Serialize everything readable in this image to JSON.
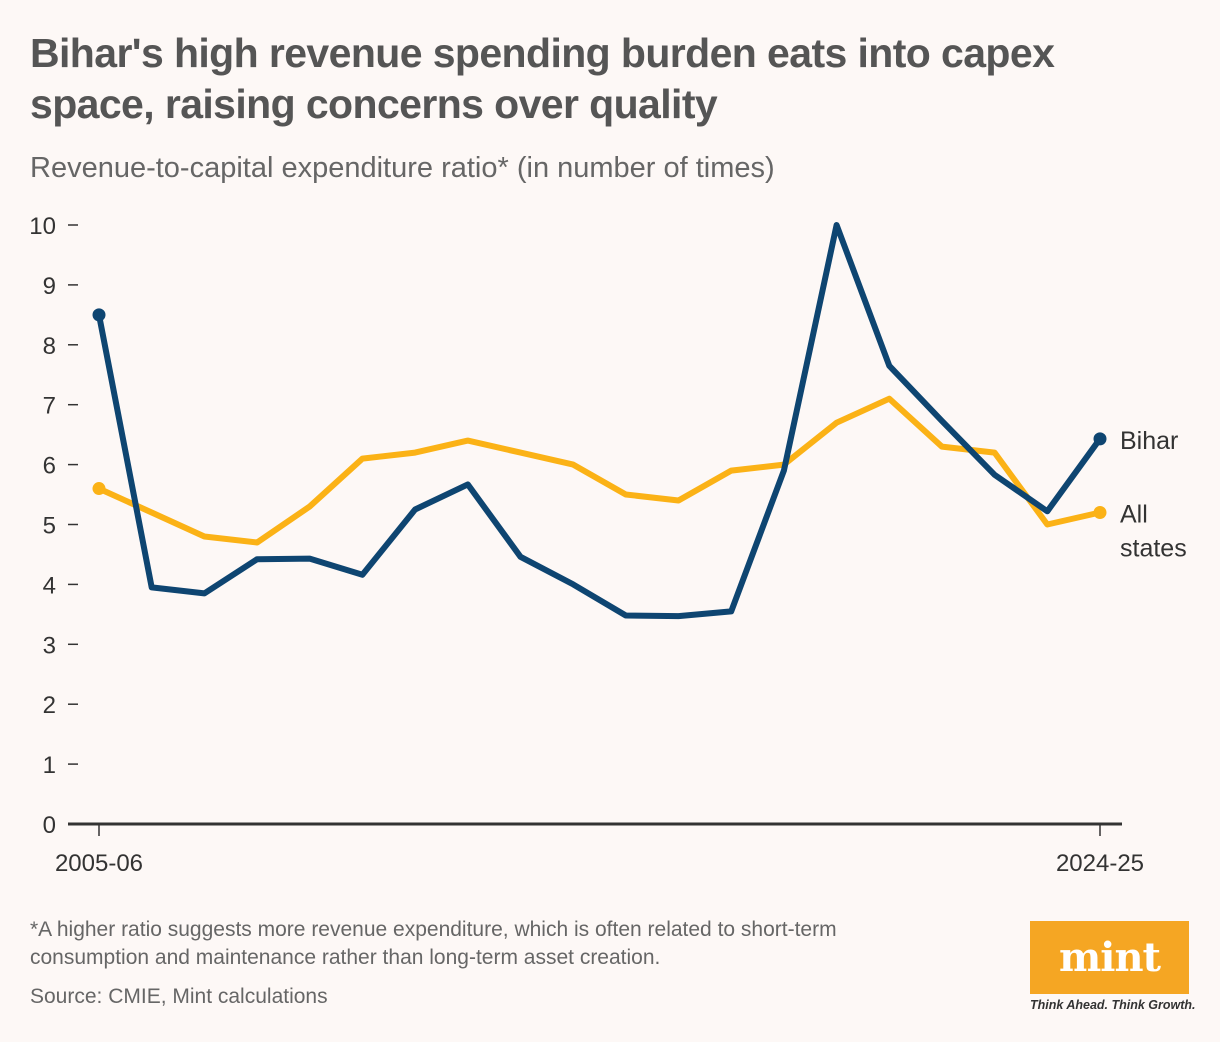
{
  "header": {
    "title": "Bihar's high revenue spending burden eats into capex space, raising concerns over quality",
    "subtitle": "Revenue-to-capital expenditure ratio* (in number of times)"
  },
  "footer": {
    "footnote": "*A higher ratio suggests more revenue expenditure, which is often related to short-term consumption and maintenance rather than long-term asset creation.",
    "source": "Source: CMIE, Mint calculations"
  },
  "brand": {
    "logo_text": "mint",
    "tagline": "Think Ahead. Think Growth.",
    "logo_color": "#f5a623"
  },
  "chart_data": {
    "type": "line",
    "title": "Bihar's high revenue spending burden eats into capex space, raising concerns over quality",
    "subtitle": "Revenue-to-capital expenditure ratio* (in number of times)",
    "xlabel": "",
    "ylabel": "",
    "x_tick_labels": [
      "2005-06",
      "2024-25"
    ],
    "x_count": 20,
    "ylim": [
      0,
      10
    ],
    "yticks": [
      0,
      1,
      2,
      3,
      4,
      5,
      6,
      7,
      8,
      9,
      10
    ],
    "grid": false,
    "legend": "direct labels at right end of lines",
    "series": [
      {
        "name": "All states",
        "label_lines": [
          "All",
          "states"
        ],
        "color": "#fbb216",
        "values": [
          5.6,
          5.2,
          4.8,
          4.7,
          5.3,
          6.1,
          6.2,
          6.4,
          6.2,
          6.0,
          5.5,
          5.4,
          5.9,
          6.0,
          6.7,
          7.1,
          6.3,
          6.2,
          5.0,
          5.2
        ]
      },
      {
        "name": "Bihar",
        "label_lines": [
          "Bihar"
        ],
        "color": "#0e4571",
        "values": [
          8.5,
          3.95,
          3.85,
          4.42,
          4.43,
          4.16,
          5.25,
          5.67,
          4.46,
          4.0,
          3.48,
          3.47,
          3.55,
          5.9,
          10.0,
          7.65,
          6.73,
          5.83,
          5.22,
          6.43
        ]
      }
    ]
  }
}
